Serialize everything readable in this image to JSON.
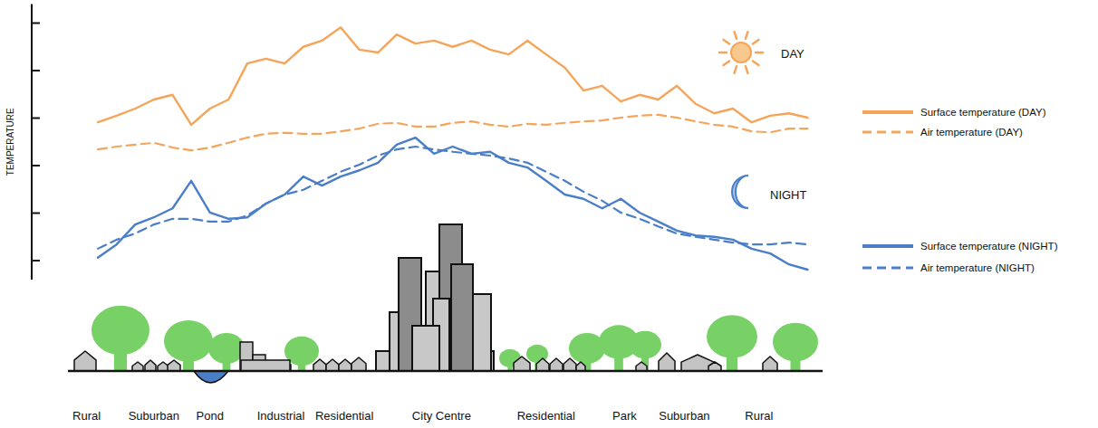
{
  "chart_data": {
    "type": "line",
    "y_label": "TEMPERATURE",
    "annotations": [
      "DAY",
      "NIGHT"
    ],
    "x": [
      4,
      6.5,
      9,
      11.5,
      14,
      16.5,
      19,
      21.5,
      24,
      26.5,
      29,
      31.5,
      34,
      36.5,
      39,
      41.5,
      44,
      46.5,
      49,
      51.5,
      54,
      56.5,
      59,
      61.5,
      64,
      66.5,
      69,
      71.5,
      74,
      76.5,
      79,
      81.5,
      84,
      86.5,
      89,
      91.5,
      94,
      96.5,
      99
    ],
    "xlim": [
      0,
      101
    ],
    "xticks": [
      {
        "value": 2.5,
        "label": "Rural"
      },
      {
        "value": 11.5,
        "label": "Suburban"
      },
      {
        "value": 19,
        "label": "Pond"
      },
      {
        "value": 28.5,
        "label": "Industrial"
      },
      {
        "value": 37,
        "label": "Residential"
      },
      {
        "value": 50,
        "label": "City Centre"
      },
      {
        "value": 64,
        "label": "Residential"
      },
      {
        "value": 74.5,
        "label": "Park"
      },
      {
        "value": 82.5,
        "label": "Suburban"
      },
      {
        "value": 92.5,
        "label": "Rural"
      }
    ],
    "ylim": [
      -0.4,
      5.4
    ],
    "yticks": [
      0,
      1,
      2,
      3,
      4,
      5
    ],
    "tick_labels": "x",
    "grid": false,
    "legend": "right",
    "series": [
      {
        "name": "Surface temperature (DAY)",
        "color": "#f5a55a",
        "line_style": "solid",
        "values": [
          2.91,
          3.05,
          3.2,
          3.39,
          3.49,
          2.86,
          3.2,
          3.39,
          4.15,
          4.25,
          4.15,
          4.5,
          4.63,
          4.91,
          4.44,
          4.38,
          4.76,
          4.57,
          4.63,
          4.5,
          4.63,
          4.44,
          4.34,
          4.63,
          4.34,
          4.06,
          3.58,
          3.68,
          3.35,
          3.49,
          3.39,
          3.68,
          3.3,
          3.1,
          3.2,
          2.91,
          3.05,
          3.1,
          3.01
        ]
      },
      {
        "name": "Air temperature (DAY)",
        "color": "#f5a55a",
        "line_style": "dashed",
        "values": [
          2.34,
          2.4,
          2.44,
          2.48,
          2.38,
          2.32,
          2.38,
          2.48,
          2.59,
          2.67,
          2.69,
          2.67,
          2.67,
          2.72,
          2.78,
          2.88,
          2.9,
          2.82,
          2.82,
          2.9,
          2.93,
          2.86,
          2.82,
          2.88,
          2.86,
          2.9,
          2.93,
          2.95,
          3.01,
          3.05,
          3.07,
          3.01,
          2.93,
          2.86,
          2.82,
          2.72,
          2.7,
          2.78,
          2.78
        ]
      },
      {
        "name": "Surface temperature (NIGHT)",
        "color": "#4a7fc8",
        "line_style": "solid",
        "values": [
          0.06,
          0.34,
          0.76,
          0.91,
          1.1,
          1.68,
          1.01,
          0.88,
          0.91,
          1.2,
          1.39,
          1.77,
          1.58,
          1.77,
          1.9,
          2.06,
          2.44,
          2.59,
          2.25,
          2.4,
          2.25,
          2.29,
          2.06,
          1.96,
          1.68,
          1.39,
          1.3,
          1.1,
          1.3,
          1.01,
          0.82,
          0.63,
          0.53,
          0.5,
          0.44,
          0.25,
          0.15,
          -0.08,
          -0.19
        ]
      },
      {
        "name": "Air temperature (NIGHT)",
        "color": "#4a7fc8",
        "line_style": "dashed",
        "values": [
          0.25,
          0.44,
          0.57,
          0.76,
          0.88,
          0.88,
          0.82,
          0.82,
          0.95,
          1.2,
          1.39,
          1.49,
          1.68,
          1.87,
          2.02,
          2.21,
          2.34,
          2.4,
          2.34,
          2.29,
          2.25,
          2.21,
          2.15,
          2.06,
          1.87,
          1.68,
          1.45,
          1.26,
          1.01,
          0.88,
          0.72,
          0.57,
          0.5,
          0.44,
          0.38,
          0.34,
          0.34,
          0.38,
          0.34
        ]
      }
    ]
  }
}
